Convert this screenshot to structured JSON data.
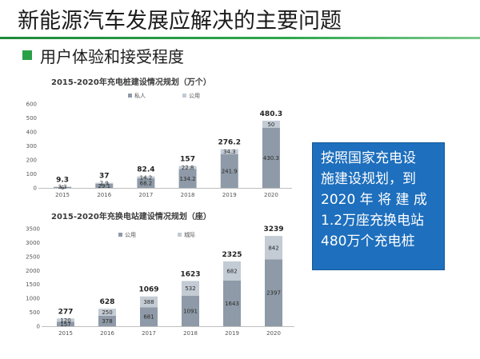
{
  "slide_title": "新能源汽车发展应解决的主要问题",
  "subtitle": "用户体验和接受程度",
  "info_box": {
    "lines": [
      "按照国家充电设",
      "施建设规划，到",
      "2020 年 将 建 成",
      "1.2万座充换电站",
      "480万个充电桩"
    ],
    "background": "#1e6fbd"
  },
  "chart_data": [
    {
      "type": "bar",
      "stacked": true,
      "title": "2015-2020年充电桩建设情况规划（万个）",
      "categories": [
        "2015",
        "2016",
        "2017",
        "2018",
        "2019",
        "2020"
      ],
      "series": [
        {
          "name": "私人",
          "values": [
            6,
            29.1,
            68.2,
            134.2,
            241.9,
            430.3
          ],
          "value_labels": [
            "6",
            "29.1",
            "68.2",
            "134.2",
            "241.9",
            "430.3"
          ],
          "color": "#8e9aa7"
        },
        {
          "name": "公用",
          "values": [
            3.3,
            7.9,
            14.2,
            22.8,
            34.3,
            50
          ],
          "value_labels": [
            "3.3",
            "7.9",
            "14.2",
            "22.8",
            "34.3",
            "50"
          ],
          "color": "#c3cbd4"
        }
      ],
      "totals": [
        "9.3",
        "37",
        "82.4",
        "157",
        "276.2",
        "480.3"
      ],
      "yticks": [
        "0",
        "100",
        "200",
        "300",
        "400",
        "500",
        "600"
      ],
      "ylim": [
        0,
        600
      ],
      "legend_position": "top-center",
      "grid": false
    },
    {
      "type": "bar",
      "stacked": true,
      "title": "2015-2020年充换电站建设情况规划（座）",
      "categories": [
        "2015",
        "2016",
        "2017",
        "2018",
        "2019",
        "2020"
      ],
      "series": [
        {
          "name": "公用",
          "values": [
            157,
            378,
            681,
            1091,
            1643,
            2397
          ],
          "value_labels": [
            "157",
            "378",
            "681",
            "1091",
            "1643",
            "2397"
          ],
          "color": "#8e9aa7"
        },
        {
          "name": "城际",
          "values": [
            120,
            250,
            388,
            532,
            682,
            842
          ],
          "value_labels": [
            "120",
            "250",
            "388",
            "532",
            "682",
            "842"
          ],
          "color": "#c3cbd4"
        }
      ],
      "totals": [
        "277",
        "628",
        "1069",
        "1623",
        "2325",
        "3239"
      ],
      "yticks": [
        "0",
        "500",
        "1000",
        "1500",
        "2000",
        "2500",
        "3000",
        "3500"
      ],
      "ylim": [
        0,
        3500
      ],
      "legend_position": "top-center",
      "grid": false
    }
  ]
}
